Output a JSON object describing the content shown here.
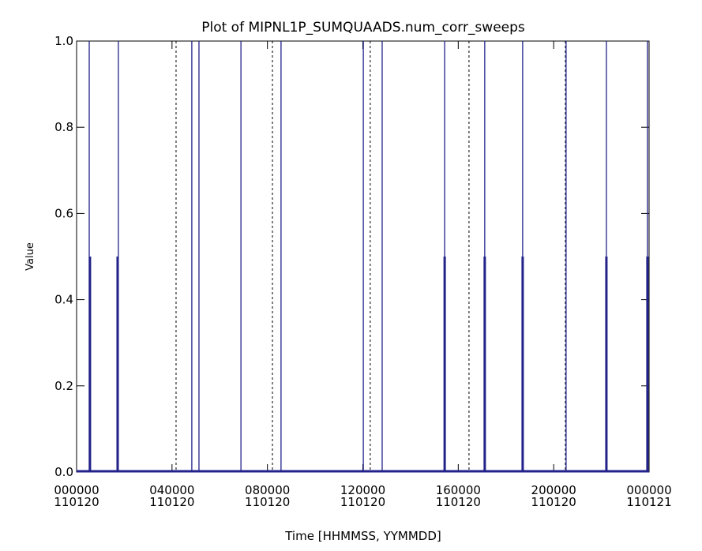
{
  "chart_data": {
    "type": "stem",
    "title": "Plot of MIPNL1P_SUMQUAADS.num_corr_sweeps",
    "xlabel": "Time [HHMMSS, YYMMDD]",
    "ylabel": "Value",
    "xlim": [
      0,
      24
    ],
    "ylim": [
      0,
      1
    ],
    "xticks": [
      {
        "value": 0,
        "label": "000000",
        "date": "110120"
      },
      {
        "value": 4,
        "label": "040000",
        "date": "110120"
      },
      {
        "value": 8,
        "label": "080000",
        "date": "110120"
      },
      {
        "value": 12,
        "label": "120000",
        "date": "110120"
      },
      {
        "value": 16,
        "label": "160000",
        "date": "110120"
      },
      {
        "value": 20,
        "label": "200000",
        "date": "110120"
      },
      {
        "value": 24,
        "label": "000000",
        "date": "110121"
      }
    ],
    "yticks": [
      {
        "value": 0,
        "label": "0.0"
      },
      {
        "value": 0.2,
        "label": "0.2"
      },
      {
        "value": 0.4,
        "label": "0.4"
      },
      {
        "value": 0.6,
        "label": "0.6"
      },
      {
        "value": 0.8,
        "label": "0.8"
      },
      {
        "value": 1,
        "label": "1.0"
      }
    ],
    "series": [
      {
        "color": "#22228a",
        "width": 1.3,
        "x": [
          0.53,
          1.75,
          4.83,
          5.13,
          6.89,
          8.57,
          12.02,
          12.81,
          15.43,
          17.11,
          18.7,
          20.52,
          22.21,
          23.93
        ],
        "values": [
          1,
          1,
          1,
          1,
          1,
          1,
          1,
          1,
          1,
          1,
          1,
          1,
          1,
          1
        ]
      },
      {
        "color": "#22228a",
        "width": 3,
        "x": [
          0.56,
          1.72,
          15.43,
          17.11,
          18.7,
          22.21,
          23.93
        ],
        "values": [
          0.5,
          0.5,
          0.5,
          0.5,
          0.5,
          0.5,
          0.5
        ]
      }
    ],
    "markers": [
      4.17,
      8.21,
      12.31,
      16.45,
      20.49
    ]
  }
}
